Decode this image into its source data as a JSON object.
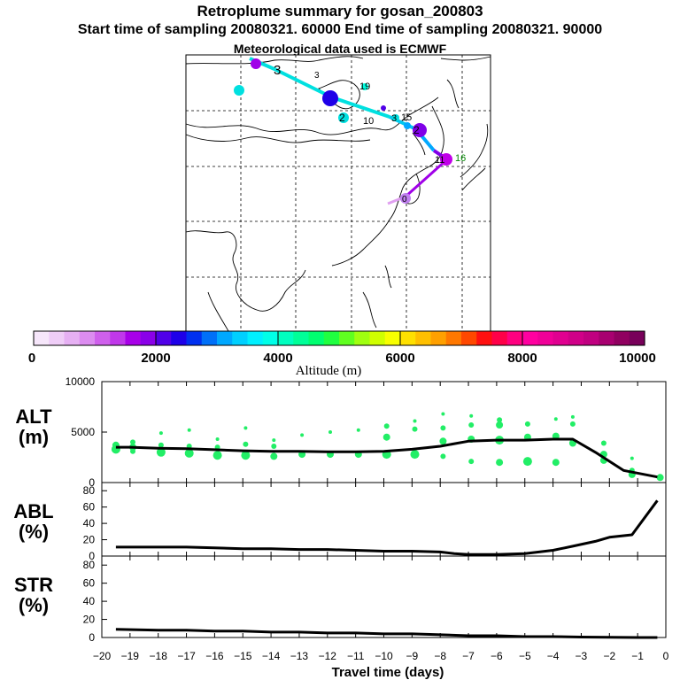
{
  "header": {
    "title": "Retroplume summary for gosan_200803",
    "subtitle": "Start time of sampling 20080321. 60000     End time of sampling 20080321. 90000",
    "met_line": "Meteorological data used is ECMWF"
  },
  "colorbar": {
    "colors": [
      "#f6e6fa",
      "#efcdf7",
      "#e6b0f3",
      "#dc8cf0",
      "#cf60ec",
      "#c038ea",
      "#a800e8",
      "#8a00e8",
      "#5000e8",
      "#1e00e8",
      "#0030f0",
      "#0070f8",
      "#00a8ff",
      "#00d0ff",
      "#00f0ff",
      "#00ffe8",
      "#00ffc0",
      "#00ff98",
      "#00ff70",
      "#20ff40",
      "#60ff20",
      "#a0ff10",
      "#d0ff00",
      "#f8ff00",
      "#ffe000",
      "#ffc000",
      "#ffa000",
      "#ff7800",
      "#ff4800",
      "#ff1010",
      "#ff0048",
      "#ff0080",
      "#ff00a0",
      "#f00098",
      "#e00090",
      "#d00088",
      "#c00080",
      "#a80070",
      "#900060",
      "#78005a"
    ],
    "tick_labels": [
      "0",
      "2000",
      "4000",
      "6000",
      "8000",
      "10000"
    ],
    "label": "Altitude (m)"
  },
  "map": {
    "point_labels": [
      "3",
      "3",
      "19",
      "2",
      "10",
      "3",
      "15",
      "2",
      "11",
      "16",
      "0"
    ]
  },
  "panels": {
    "alt_label": [
      "ALT",
      "(m)"
    ],
    "abl_label": [
      "ABL",
      "(%)"
    ],
    "str_label": [
      "STR",
      "(%)"
    ]
  },
  "chart_data": [
    {
      "type": "scatter+line",
      "name": "ALT",
      "ylabel": "ALT (m)",
      "ylim": [
        0,
        10000
      ],
      "yticks": [
        10000,
        5000,
        0
      ],
      "xlim": [
        -20,
        0
      ],
      "line": {
        "x": [
          -19.5,
          -19,
          -18,
          -17,
          -16,
          -15,
          -14,
          -13,
          -12,
          -11,
          -10,
          -9,
          -8,
          -7,
          -6,
          -5,
          -4,
          -3.3,
          -2.5,
          -1.5,
          -0.3
        ],
        "y": [
          3500,
          3500,
          3400,
          3350,
          3250,
          3150,
          3100,
          3100,
          3050,
          3050,
          3100,
          3300,
          3600,
          4100,
          4200,
          4200,
          4300,
          4300,
          3000,
          1200,
          550
        ]
      },
      "points_x": [
        -19.5,
        -19.5,
        -18.9,
        -18.9,
        -18.9,
        -17.9,
        -17.9,
        -17.9,
        -16.9,
        -16.9,
        -16.9,
        -15.9,
        -15.9,
        -15.9,
        -14.9,
        -14.9,
        -14.9,
        -13.9,
        -13.9,
        -13.9,
        -12.9,
        -12.9,
        -11.9,
        -11.9,
        -10.9,
        -10.9,
        -9.9,
        -9.9,
        -9.9,
        -8.9,
        -8.9,
        -8.9,
        -7.9,
        -7.9,
        -7.9,
        -7.9,
        -6.9,
        -6.9,
        -6.9,
        -6.9,
        -5.9,
        -5.9,
        -5.9,
        -5.9,
        -4.9,
        -4.9,
        -4.9,
        -4.9,
        -3.9,
        -3.9,
        -3.9,
        -3.3,
        -3.3,
        -3.3,
        -2.2,
        -2.2,
        -2.2,
        -1.2,
        -1.2,
        -1.2,
        -0.2
      ],
      "points_y": [
        3700,
        3300,
        4000,
        3500,
        3100,
        4900,
        3700,
        3000,
        5200,
        3600,
        2900,
        4300,
        3500,
        2700,
        5400,
        3800,
        2700,
        4200,
        3600,
        2600,
        4700,
        2800,
        5000,
        2800,
        5200,
        2800,
        5600,
        4500,
        2800,
        6100,
        5300,
        2800,
        6800,
        5400,
        4100,
        2600,
        6600,
        5700,
        4300,
        2100,
        6200,
        5700,
        4200,
        2000,
        5800,
        4500,
        2100,
        2000,
        6300,
        4600,
        2000,
        6500,
        5800,
        3900,
        3900,
        2800,
        2200,
        2400,
        1200,
        800,
        500
      ],
      "points_r": [
        4,
        5,
        3,
        4,
        3,
        2,
        3,
        5,
        2,
        3,
        5,
        2,
        3,
        5,
        2,
        3,
        5,
        2,
        3,
        4,
        2,
        4,
        2,
        4,
        2,
        4,
        3,
        4,
        5,
        2,
        3,
        5,
        2,
        3,
        4,
        3,
        2,
        3,
        4,
        3,
        3,
        4,
        5,
        4,
        3,
        4,
        5,
        3,
        2,
        4,
        4,
        2,
        3,
        4,
        3,
        4,
        4,
        2,
        3,
        4,
        4
      ]
    },
    {
      "type": "line",
      "name": "ABL",
      "ylabel": "ABL (%)",
      "ylim": [
        0,
        90
      ],
      "yticks": [
        80,
        60,
        40,
        20,
        0
      ],
      "xlim": [
        -20,
        0
      ],
      "x": [
        -19.5,
        -18,
        -17,
        -16,
        -15,
        -14,
        -13,
        -12,
        -11,
        -10,
        -9,
        -8,
        -7.5,
        -7,
        -6,
        -5,
        -4.5,
        -4,
        -3.3,
        -2.5,
        -2,
        -1.2,
        -0.3
      ],
      "y": [
        11,
        11,
        11,
        10,
        9,
        9,
        8,
        8,
        7,
        6,
        6,
        5,
        3,
        2,
        2,
        3,
        5,
        7,
        12,
        18,
        23,
        26,
        68
      ]
    },
    {
      "type": "line",
      "name": "STR",
      "ylabel": "STR (%)",
      "ylim": [
        0,
        90
      ],
      "yticks": [
        80,
        60,
        40,
        20,
        0
      ],
      "xlim": [
        -20,
        0
      ],
      "x": [
        -19.5,
        -18,
        -17,
        -16,
        -15,
        -14,
        -13,
        -12,
        -11,
        -10,
        -9,
        -8,
        -7,
        -6,
        -5,
        -4,
        -3,
        -2,
        -1,
        -0.3
      ],
      "y": [
        9,
        8,
        8,
        7,
        7,
        6,
        6,
        5,
        5,
        4,
        4,
        3,
        2,
        2,
        1,
        1,
        0.5,
        0.2,
        0,
        0
      ]
    }
  ],
  "xaxis": {
    "tick_labels": [
      "−20",
      "−19",
      "−18",
      "−17",
      "−16",
      "−15",
      "−14",
      "−13",
      "−12",
      "−11",
      "−10",
      "−9",
      "−8",
      "−7",
      "−6",
      "−5",
      "−4",
      "−3",
      "−2",
      "−1",
      "0"
    ],
    "label": "Travel time (days)"
  }
}
